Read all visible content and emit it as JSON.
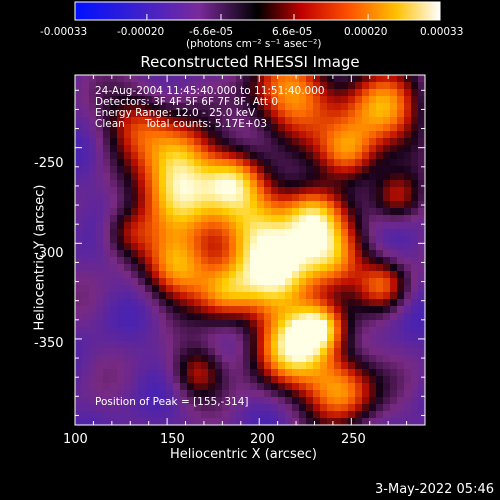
{
  "colorbar": {
    "ticks": [
      "-0.00033",
      "-0.00020",
      "-6.6e-05",
      "6.6e-05",
      "0.00020",
      "0.00033"
    ],
    "tick_values": [
      -0.00033,
      -0.0002,
      -6.6e-05,
      6.6e-05,
      0.0002,
      0.00033
    ],
    "range": [
      -0.00033,
      0.00033
    ],
    "unit_label": "(photons cm⁻² s⁻¹ asec⁻²)"
  },
  "chart_data": {
    "type": "heatmap",
    "title": "Reconstructed RHESSI Image",
    "xlabel": "Heliocentric X (arcsec)",
    "ylabel": "Heliocentric Y (arcsec)",
    "xlim": [
      100,
      290
    ],
    "ylim": [
      -395,
      -212
    ],
    "xticks": [
      100,
      150,
      200,
      250
    ],
    "yticks": [
      -250,
      -300,
      -350
    ],
    "grid": false,
    "colormap": [
      "#0010ff",
      "#5a2aa0",
      "#7a2a7a",
      "#000000",
      "#c01000",
      "#ff6a00",
      "#ffd000",
      "#ffffff"
    ],
    "peak_position": [
      155,
      -314
    ],
    "annotations": {
      "time": "24-Aug-2004 11:45:40.000 to 11:51:40.000",
      "detectors": "Detectors: 3F 4F 5F 6F 7F 8F, Att 0",
      "energy": "Energy Range: 12.0 - 25.0 keV",
      "method": "Clean",
      "counts": "Total counts: 5.17E+03",
      "peak": "Position of Peak = [155,-314]"
    }
  },
  "footer": {
    "timestamp": "3-May-2022 05:46"
  }
}
